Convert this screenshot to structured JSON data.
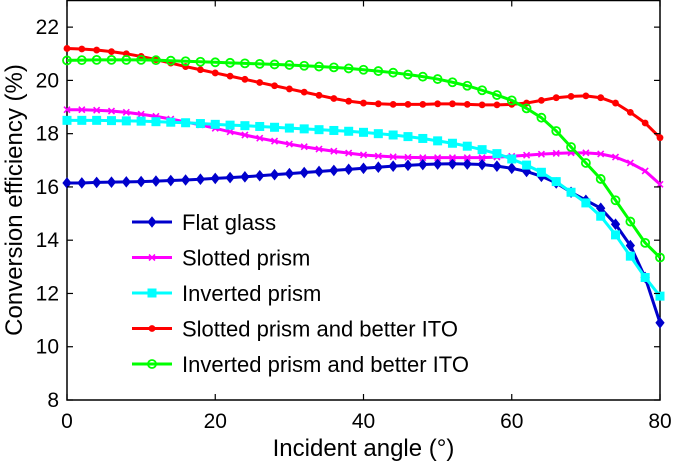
{
  "chart_data": {
    "type": "line",
    "title": "",
    "xlabel": "Incident angle (°)",
    "ylabel": "Conversion efficiency (%)",
    "xlim": [
      0,
      80
    ],
    "ylim": [
      8,
      23
    ],
    "xticks": [
      0,
      20,
      40,
      60,
      80
    ],
    "yticks": [
      8,
      10,
      12,
      14,
      16,
      18,
      20,
      22
    ],
    "grid": false,
    "legend_position": "bottom-left",
    "x": [
      0,
      2,
      4,
      6,
      8,
      10,
      12,
      14,
      16,
      18,
      20,
      22,
      24,
      26,
      28,
      30,
      32,
      34,
      36,
      38,
      40,
      42,
      44,
      46,
      48,
      50,
      52,
      54,
      56,
      58,
      60,
      62,
      64,
      66,
      68,
      70,
      72,
      74,
      76,
      78,
      80
    ],
    "series": [
      {
        "name": "Flat glass",
        "color": "#0000cc",
        "marker": "diamond",
        "values": [
          16.15,
          16.15,
          16.17,
          16.18,
          16.19,
          16.2,
          16.22,
          16.24,
          16.26,
          16.29,
          16.32,
          16.35,
          16.38,
          16.42,
          16.46,
          16.5,
          16.54,
          16.58,
          16.62,
          16.66,
          16.7,
          16.74,
          16.78,
          16.81,
          16.84,
          16.86,
          16.87,
          16.86,
          16.84,
          16.78,
          16.7,
          16.58,
          16.4,
          16.15,
          15.8,
          15.5,
          15.2,
          14.6,
          13.8,
          12.6,
          10.9
        ]
      },
      {
        "name": "Slotted prism",
        "color": "#ff00ff",
        "marker": "x",
        "values": [
          18.9,
          18.9,
          18.88,
          18.85,
          18.8,
          18.73,
          18.65,
          18.55,
          18.44,
          18.33,
          18.2,
          18.07,
          17.95,
          17.83,
          17.72,
          17.61,
          17.51,
          17.42,
          17.34,
          17.27,
          17.2,
          17.16,
          17.13,
          17.11,
          17.1,
          17.1,
          17.1,
          17.1,
          17.1,
          17.12,
          17.15,
          17.19,
          17.23,
          17.26,
          17.28,
          17.28,
          17.24,
          17.12,
          16.9,
          16.6,
          16.1
        ]
      },
      {
        "name": "Inverted prism",
        "color": "#00ffff",
        "marker": "square",
        "values": [
          18.5,
          18.5,
          18.5,
          18.49,
          18.48,
          18.47,
          18.45,
          18.43,
          18.41,
          18.38,
          18.35,
          18.32,
          18.3,
          18.27,
          18.24,
          18.21,
          18.18,
          18.15,
          18.12,
          18.09,
          18.05,
          18.0,
          17.95,
          17.89,
          17.82,
          17.73,
          17.64,
          17.53,
          17.4,
          17.25,
          17.05,
          16.82,
          16.55,
          16.2,
          15.8,
          15.4,
          14.9,
          14.2,
          13.4,
          12.6,
          11.9
        ]
      },
      {
        "name": "Slotted prism and better ITO",
        "color": "#ff0000",
        "marker": "dot",
        "values": [
          21.2,
          21.18,
          21.14,
          21.08,
          21.0,
          20.9,
          20.78,
          20.65,
          20.52,
          20.4,
          20.28,
          20.16,
          20.04,
          19.92,
          19.8,
          19.68,
          19.56,
          19.44,
          19.32,
          19.22,
          19.15,
          19.12,
          19.1,
          19.1,
          19.1,
          19.12,
          19.12,
          19.1,
          19.08,
          19.08,
          19.1,
          19.15,
          19.25,
          19.35,
          19.4,
          19.42,
          19.35,
          19.15,
          18.8,
          18.4,
          17.85
        ]
      },
      {
        "name": "Inverted prism and better ITO",
        "color": "#00ff00",
        "marker": "circle",
        "values": [
          20.75,
          20.76,
          20.77,
          20.77,
          20.77,
          20.77,
          20.76,
          20.74,
          20.72,
          20.7,
          20.68,
          20.66,
          20.64,
          20.62,
          20.6,
          20.58,
          20.55,
          20.52,
          20.49,
          20.45,
          20.4,
          20.35,
          20.29,
          20.22,
          20.14,
          20.05,
          19.93,
          19.8,
          19.63,
          19.45,
          19.25,
          18.95,
          18.6,
          18.1,
          17.5,
          16.9,
          16.3,
          15.5,
          14.7,
          13.9,
          13.35
        ]
      }
    ]
  }
}
